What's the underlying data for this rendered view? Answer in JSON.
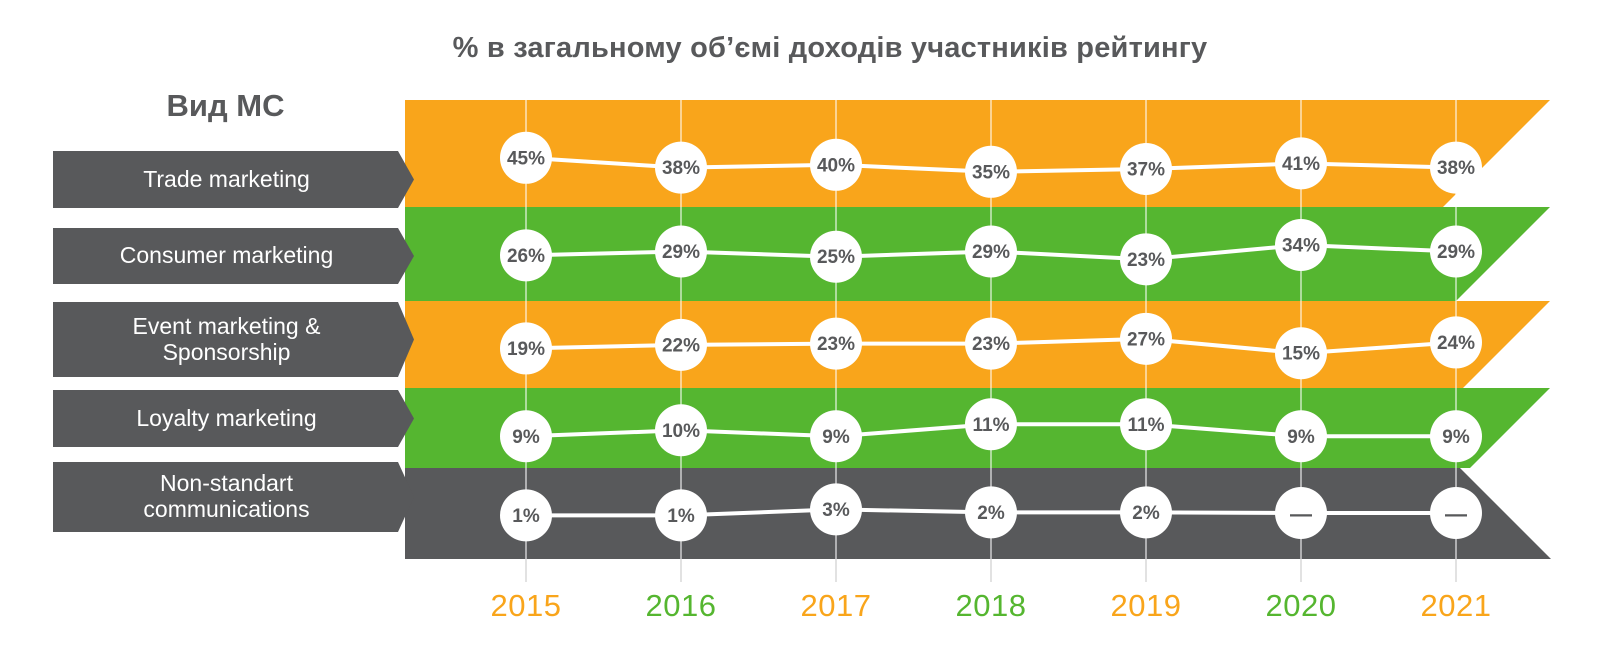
{
  "page": {
    "title": "% в загальному об’ємі доходів участників рейтингу",
    "rows_header": "Вид МС"
  },
  "colors": {
    "orange": "#F9A51B",
    "green": "#55B630",
    "dark": "#58595B",
    "white": "#FFFFFF",
    "value_text": "#58595B",
    "tick": "#D8D8D8"
  },
  "chart_data": {
    "type": "line",
    "title": "% в загальному об’ємі доходів участників рейтингу",
    "categories": [
      "2015",
      "2016",
      "2017",
      "2018",
      "2019",
      "2020",
      "2021"
    ],
    "category_colors": [
      "orange",
      "green",
      "orange",
      "green",
      "orange",
      "green",
      "orange"
    ],
    "unit": "%",
    "null_display": "—",
    "value_range": [
      0,
      50
    ],
    "legend_position": "left",
    "grid": "vertical-only",
    "series": [
      {
        "name": "Trade marketing",
        "label_lines": [
          "Trade marketing"
        ],
        "band": "orange",
        "values": [
          45,
          38,
          40,
          35,
          37,
          41,
          38
        ]
      },
      {
        "name": "Consumer marketing",
        "label_lines": [
          "Consumer marketing"
        ],
        "band": "green",
        "values": [
          26,
          29,
          25,
          29,
          23,
          34,
          29
        ]
      },
      {
        "name": "Event marketing & Sponsorship",
        "label_lines": [
          "Event marketing &",
          "Sponsorship"
        ],
        "band": "orange",
        "values": [
          19,
          22,
          23,
          23,
          27,
          15,
          24
        ]
      },
      {
        "name": "Loyalty marketing",
        "label_lines": [
          "Loyalty marketing"
        ],
        "band": "green",
        "values": [
          9,
          10,
          9,
          11,
          11,
          9,
          9
        ]
      },
      {
        "name": "Non-standart communications",
        "label_lines": [
          "Non-standart",
          "communications"
        ],
        "band": "dark",
        "values": [
          1,
          1,
          3,
          2,
          2,
          null,
          null
        ]
      }
    ]
  }
}
